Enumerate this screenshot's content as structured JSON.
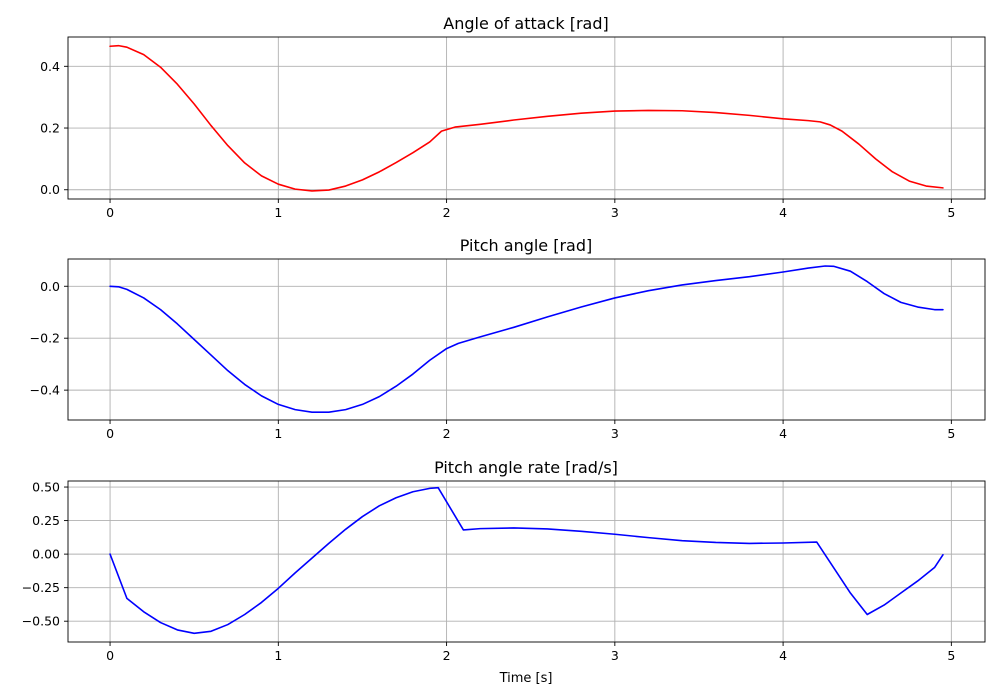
{
  "chart_data": [
    {
      "type": "line",
      "title": "Angle of attack [rad]",
      "xlabel": "",
      "ylabel": "",
      "xlim": [
        -0.25,
        5.2
      ],
      "ylim": [
        -0.03,
        0.495
      ],
      "xticks": [
        0,
        1,
        2,
        3,
        4,
        5
      ],
      "xtick_labels": [
        "0",
        "1",
        "2",
        "3",
        "4",
        "5"
      ],
      "yticks": [
        0.0,
        0.2,
        0.4
      ],
      "ytick_labels": [
        "0.0",
        "0.2",
        "0.4"
      ],
      "grid": true,
      "series": [
        {
          "color": "#ff0000",
          "x": [
            0,
            0.05,
            0.1,
            0.2,
            0.3,
            0.4,
            0.5,
            0.6,
            0.7,
            0.8,
            0.9,
            1.0,
            1.1,
            1.2,
            1.3,
            1.4,
            1.5,
            1.6,
            1.7,
            1.8,
            1.9,
            1.97,
            2.05,
            2.2,
            2.4,
            2.6,
            2.8,
            3.0,
            3.2,
            3.4,
            3.6,
            3.8,
            4.0,
            4.15,
            4.22,
            4.28,
            4.35,
            4.45,
            4.55,
            4.65,
            4.75,
            4.85,
            4.95
          ],
          "y": [
            0.465,
            0.467,
            0.462,
            0.438,
            0.397,
            0.342,
            0.278,
            0.208,
            0.143,
            0.087,
            0.045,
            0.018,
            0.002,
            -0.004,
            -0.001,
            0.012,
            0.032,
            0.058,
            0.088,
            0.12,
            0.155,
            0.19,
            0.203,
            0.212,
            0.226,
            0.238,
            0.248,
            0.255,
            0.257,
            0.256,
            0.25,
            0.241,
            0.23,
            0.224,
            0.22,
            0.21,
            0.19,
            0.148,
            0.1,
            0.058,
            0.028,
            0.012,
            0.006
          ]
        }
      ]
    },
    {
      "type": "line",
      "title": "Pitch angle [rad]",
      "xlabel": "",
      "ylabel": "",
      "xlim": [
        -0.25,
        5.2
      ],
      "ylim": [
        -0.515,
        0.105
      ],
      "xticks": [
        0,
        1,
        2,
        3,
        4,
        5
      ],
      "xtick_labels": [
        "0",
        "1",
        "2",
        "3",
        "4",
        "5"
      ],
      "yticks": [
        -0.4,
        -0.2,
        0.0
      ],
      "ytick_labels": [
        "−0.4",
        "−0.2",
        "0.0"
      ],
      "grid": true,
      "series": [
        {
          "color": "#0000ff",
          "x": [
            0,
            0.05,
            0.1,
            0.2,
            0.3,
            0.4,
            0.5,
            0.6,
            0.7,
            0.8,
            0.9,
            1.0,
            1.1,
            1.2,
            1.3,
            1.4,
            1.5,
            1.6,
            1.7,
            1.8,
            1.9,
            2.0,
            2.07,
            2.2,
            2.4,
            2.6,
            2.8,
            3.0,
            3.2,
            3.4,
            3.6,
            3.8,
            4.0,
            4.15,
            4.25,
            4.3,
            4.4,
            4.5,
            4.6,
            4.7,
            4.8,
            4.9,
            4.95
          ],
          "y": [
            0.0,
            -0.002,
            -0.012,
            -0.045,
            -0.09,
            -0.145,
            -0.205,
            -0.265,
            -0.325,
            -0.378,
            -0.422,
            -0.455,
            -0.475,
            -0.485,
            -0.485,
            -0.475,
            -0.455,
            -0.425,
            -0.385,
            -0.338,
            -0.285,
            -0.24,
            -0.22,
            -0.195,
            -0.158,
            -0.118,
            -0.08,
            -0.045,
            -0.017,
            0.005,
            0.022,
            0.037,
            0.055,
            0.07,
            0.078,
            0.077,
            0.058,
            0.018,
            -0.028,
            -0.062,
            -0.08,
            -0.09,
            -0.09
          ]
        }
      ]
    },
    {
      "type": "line",
      "title": "Pitch angle rate [rad/s]",
      "xlabel": "Time [s]",
      "ylabel": "",
      "xlim": [
        -0.25,
        5.2
      ],
      "ylim": [
        -0.655,
        0.545
      ],
      "xticks": [
        0,
        1,
        2,
        3,
        4,
        5
      ],
      "xtick_labels": [
        "0",
        "1",
        "2",
        "3",
        "4",
        "5"
      ],
      "yticks": [
        -0.5,
        -0.25,
        0.0,
        0.25,
        0.5
      ],
      "ytick_labels": [
        "−0.50",
        "−0.25",
        "0.00",
        "0.25",
        "0.50"
      ],
      "grid": true,
      "series": [
        {
          "color": "#0000ff",
          "x": [
            0,
            0.1,
            0.2,
            0.3,
            0.4,
            0.5,
            0.6,
            0.7,
            0.8,
            0.9,
            1.0,
            1.1,
            1.2,
            1.3,
            1.4,
            1.5,
            1.6,
            1.7,
            1.8,
            1.9,
            1.95,
            2.1,
            2.2,
            2.4,
            2.6,
            2.8,
            3.0,
            3.2,
            3.4,
            3.6,
            3.8,
            4.0,
            4.2,
            4.3,
            4.4,
            4.5,
            4.6,
            4.7,
            4.8,
            4.9,
            4.95
          ],
          "y": [
            0.0,
            -0.33,
            -0.43,
            -0.51,
            -0.565,
            -0.59,
            -0.575,
            -0.525,
            -0.45,
            -0.36,
            -0.255,
            -0.14,
            -0.03,
            0.08,
            0.185,
            0.28,
            0.36,
            0.42,
            0.465,
            0.49,
            0.495,
            0.18,
            0.19,
            0.195,
            0.188,
            0.17,
            0.148,
            0.123,
            0.1,
            0.087,
            0.08,
            0.083,
            0.09,
            -0.1,
            -0.29,
            -0.45,
            -0.38,
            -0.29,
            -0.2,
            -0.1,
            -0.005
          ]
        }
      ]
    }
  ]
}
